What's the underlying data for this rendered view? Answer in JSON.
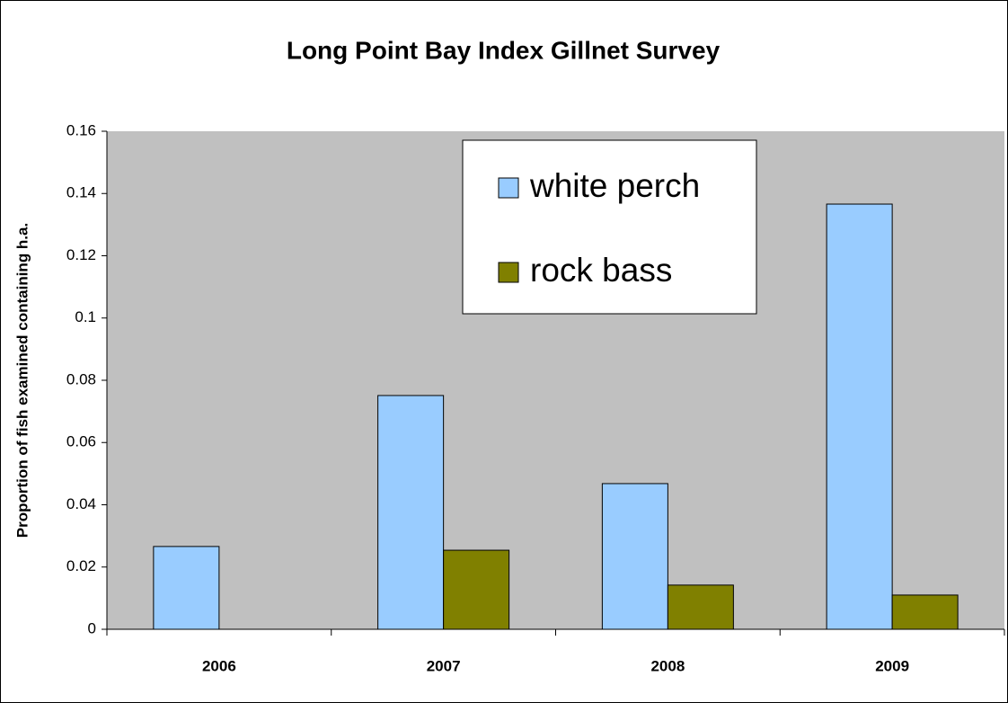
{
  "chart_data": {
    "type": "bar",
    "title": "Long Point Bay Index Gillnet Survey",
    "y_label": "Proportion of fish examined containing h.a.",
    "categories": [
      "2006",
      "2007",
      "2008",
      "2009"
    ],
    "series": [
      {
        "name": "white perch",
        "color": "#99ccff",
        "values": [
          0.0266,
          0.0751,
          0.0468,
          0.1366
        ]
      },
      {
        "name": "rock bass",
        "color": "#808000",
        "values": [
          0,
          0.0254,
          0.0142,
          0.011
        ]
      }
    ],
    "ylim": [
      0,
      0.16
    ],
    "yticks": [
      0,
      0.02,
      0.04,
      0.06,
      0.08,
      0.1,
      0.12,
      0.14,
      0.16
    ],
    "grid": false,
    "legend": "top-center",
    "plot_background": "#c0c0c0"
  }
}
